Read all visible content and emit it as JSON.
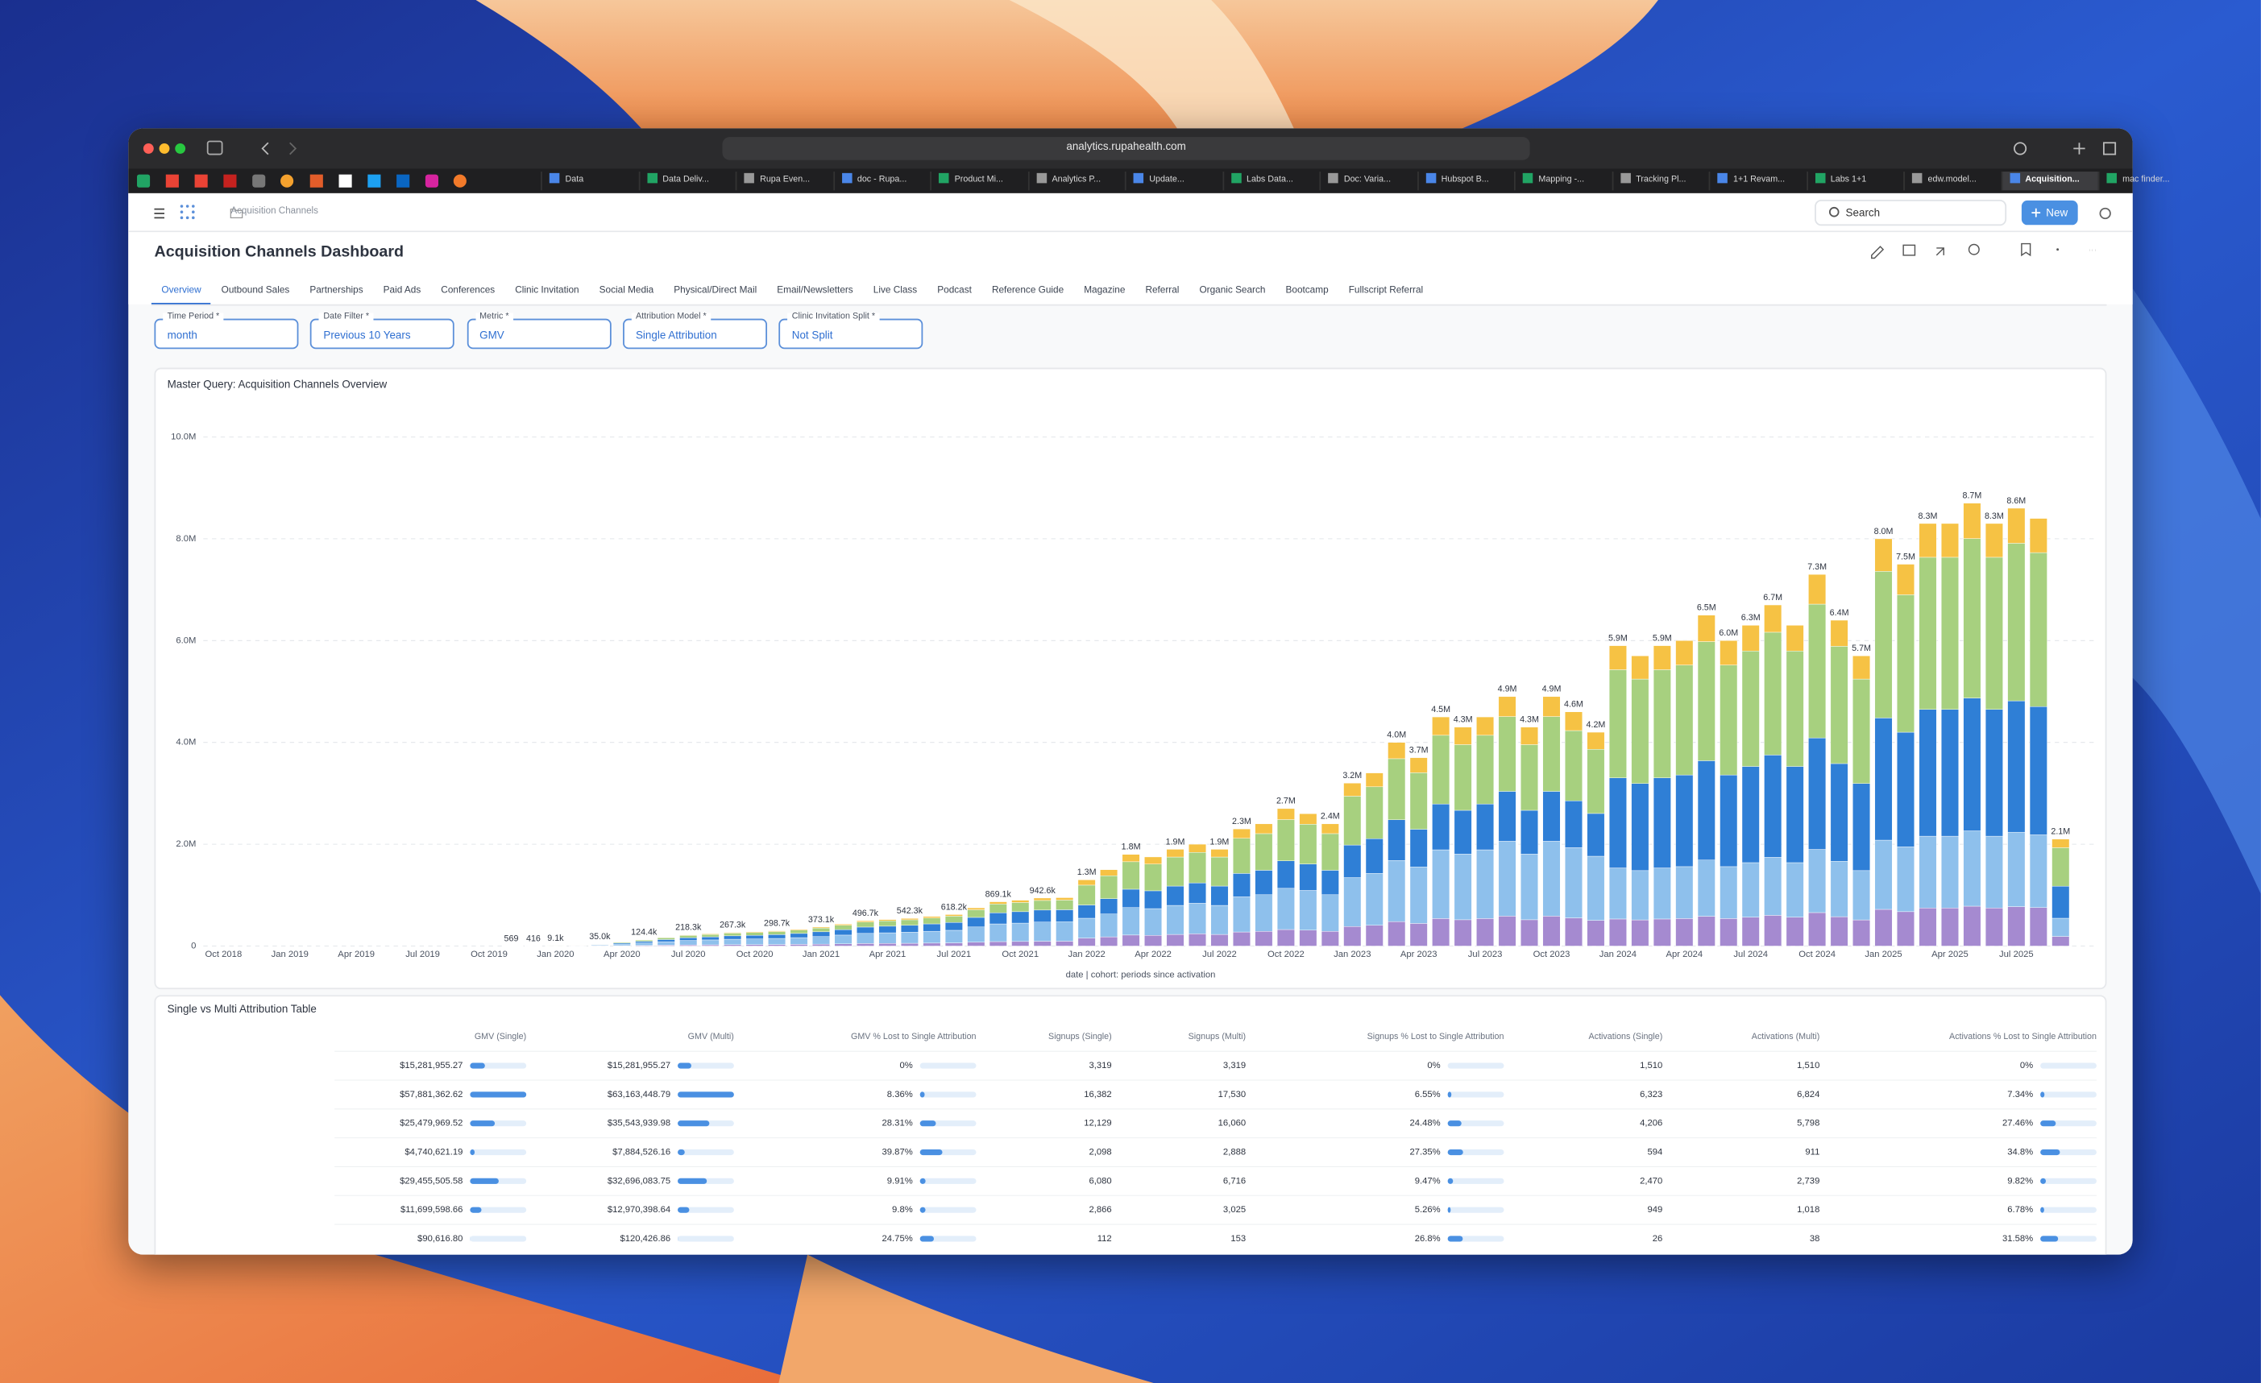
{
  "browser": {
    "url": "analytics.rupahealth.com",
    "tabs": [
      "Data",
      "Data Deliv...",
      "Rupa Even...",
      "doc - Rupa...",
      "Product Mi...",
      "Analytics P...",
      "Update...",
      "Labs Data...",
      "Doc: Varia...",
      "Hubspot B...",
      "Mapping -...",
      "Tracking Pl...",
      "1+1 Revam...",
      "Labs 1+1",
      "edw.model...",
      "Acquisition...",
      "mac finder..."
    ]
  },
  "app": {
    "breadcrumb": "Acquisition Channels",
    "search": "Search",
    "new_button": "New",
    "title": "Acquisition Channels Dashboard",
    "tabs": [
      "Overview",
      "Outbound Sales",
      "Partnerships",
      "Paid Ads",
      "Conferences",
      "Clinic Invitation",
      "Social Media",
      "Physical/Direct Mail",
      "Email/Newsletters",
      "Live Class",
      "Podcast",
      "Reference Guide",
      "Magazine",
      "Referral",
      "Organic Search",
      "Bootcamp",
      "Fullscript Referral"
    ],
    "filters": [
      {
        "label": "Time Period *",
        "value": "month"
      },
      {
        "label": "Date Filter *",
        "value": "Previous 10 Years"
      },
      {
        "label": "Metric *",
        "value": "GMV"
      },
      {
        "label": "Attribution Model *",
        "value": "Single Attribution"
      },
      {
        "label": "Clinic Invitation Split *",
        "value": "Not Split"
      }
    ]
  },
  "chart_data": {
    "type": "stacked_bar",
    "title": "Master Query: Acquisition Channels Overview",
    "x_label": "date | cohort: periods since activation",
    "categories": [
      "Oct 2018",
      null,
      null,
      "Jan 2019",
      null,
      null,
      "Apr 2019",
      null,
      null,
      "Jul 2019",
      null,
      null,
      "Oct 2019",
      null,
      null,
      "Jan 2020",
      null,
      null,
      "Apr 2020",
      null,
      null,
      "Jul 2020",
      null,
      null,
      "Oct 2020",
      null,
      null,
      "Jan 2021",
      null,
      null,
      "Apr 2021",
      null,
      null,
      "Jul 2021",
      null,
      null,
      "Oct 2021",
      null,
      null,
      "Jan 2022",
      null,
      null,
      "Apr 2022",
      null,
      null,
      "Jul 2022",
      null,
      null,
      "Oct 2022",
      null,
      null,
      "Jan 2023",
      null,
      null,
      "Apr 2023",
      null,
      null,
      "Jul 2023",
      null,
      null,
      "Oct 2023",
      null,
      null,
      "Jan 2024",
      null,
      null,
      "Apr 2024",
      null,
      null,
      "Jul 2024",
      null,
      null,
      "Oct 2024",
      null,
      null,
      "Jan 2025",
      null,
      null,
      "Apr 2025",
      null,
      null,
      "Jul 2025",
      null,
      null
    ],
    "ylim": [
      0,
      10000000
    ],
    "yticks": [
      0,
      {
        "value": 2000000,
        "label": "2.0M"
      },
      {
        "value": 4000000,
        "label": "4.0M"
      },
      {
        "value": 6000000,
        "label": "6.0M"
      },
      {
        "value": 8000000,
        "label": "8.0M"
      },
      {
        "value": 10000000,
        "label": "10.0M"
      }
    ],
    "grid": true,
    "series": [
      {
        "color": "#a58ad0",
        "values": [
          null,
          null,
          null,
          null,
          null,
          null,
          null,
          null,
          null,
          null,
          null,
          null,
          null,
          57,
          42,
          910,
          1500,
          3500,
          8000,
          12440,
          17000,
          21830,
          24000,
          26730,
          28000,
          29870,
          33000,
          37310,
          43000,
          49670,
          52000,
          54230,
          58000,
          61820,
          75000,
          86910,
          90000,
          94260,
          95000,
          156000,
          180000,
          216000,
          210000,
          228000,
          240000,
          228000,
          276000,
          288000,
          324000,
          312000,
          288000,
          384000,
          408000,
          480000,
          444000,
          540000,
          516000,
          540000,
          588000,
          516000,
          588000,
          552000,
          504000,
          531000,
          513000,
          531000,
          540000,
          585000,
          540000,
          567000,
          603000,
          567000,
          657000,
          576000,
          513000,
          720000,
          675000,
          747000,
          747000,
          783000,
          747000,
          774000,
          756000,
          189000
        ]
      },
      {
        "color": "#8ec0ec",
        "values": [
          null,
          null,
          null,
          null,
          null,
          null,
          null,
          null,
          null,
          null,
          null,
          null,
          null,
          228,
          166,
          3640,
          6000,
          14000,
          32000,
          49760,
          68000,
          87320,
          96000,
          106920,
          112000,
          119480,
          132000,
          149240,
          172000,
          198680,
          208000,
          216920,
          232000,
          247280,
          300000,
          347640,
          360000,
          377040,
          380000,
          390000,
          450000,
          540000,
          525000,
          570000,
          600000,
          570000,
          690000,
          720000,
          810000,
          780000,
          720000,
          960000,
          1020000,
          1200000,
          1110000,
          1350000,
          1290000,
          1350000,
          1470000,
          1290000,
          1470000,
          1380000,
          1260000,
          1003000,
          969000,
          1003000,
          1020000,
          1105000,
          1020000,
          1071000,
          1139000,
          1071000,
          1241000,
          1088000,
          969000,
          1360000,
          1275000,
          1411000,
          1411000,
          1479000,
          1411000,
          1462000,
          1428000,
          357000
        ]
      },
      {
        "color": "#2f7fd6",
        "values": [
          null,
          null,
          null,
          null,
          null,
          null,
          null,
          null,
          null,
          null,
          null,
          null,
          null,
          142,
          104,
          2275,
          3750,
          8750,
          20000,
          31100,
          42500,
          54575,
          60000,
          66825,
          70000,
          74675,
          82500,
          93275,
          107500,
          124175,
          130000,
          135575,
          145000,
          154550,
          187500,
          217275,
          225000,
          235650,
          237500,
          260000,
          300000,
          360000,
          350000,
          380000,
          400000,
          380000,
          460000,
          480000,
          540000,
          520000,
          480000,
          640000,
          680000,
          800000,
          740000,
          900000,
          860000,
          900000,
          980000,
          860000,
          980000,
          920000,
          840000,
          1770000,
          1710000,
          1770000,
          1800000,
          1950000,
          1800000,
          1890000,
          2010000,
          1890000,
          2190000,
          1920000,
          1710000,
          2400000,
          2250000,
          2490000,
          2490000,
          2610000,
          2490000,
          2580000,
          2520000,
          630000
        ]
      },
      {
        "color": "#a7d07f",
        "values": [
          null,
          null,
          null,
          null,
          null,
          null,
          null,
          null,
          null,
          null,
          null,
          null,
          null,
          114,
          83,
          1820,
          3000,
          7000,
          16000,
          24880,
          34000,
          43660,
          48000,
          53460,
          56000,
          59740,
          66000,
          74620,
          86000,
          99340,
          104000,
          108460,
          116000,
          123640,
          150000,
          173820,
          180000,
          188520,
          190000,
          390000,
          450000,
          540000,
          525000,
          570000,
          600000,
          570000,
          690000,
          720000,
          810000,
          780000,
          720000,
          960000,
          1020000,
          1200000,
          1110000,
          1350000,
          1290000,
          1350000,
          1470000,
          1290000,
          1470000,
          1380000,
          1260000,
          2124000,
          2052000,
          2124000,
          2160000,
          2340000,
          2160000,
          2268000,
          2412000,
          2268000,
          2628000,
          2304000,
          2052000,
          2880000,
          2700000,
          2988000,
          2988000,
          3132000,
          2988000,
          3096000,
          3024000,
          756000
        ]
      },
      {
        "color": "#f6c244",
        "values": [
          null,
          null,
          null,
          null,
          null,
          null,
          null,
          null,
          null,
          null,
          null,
          null,
          null,
          28,
          21,
          455,
          750,
          1750,
          4000,
          6220,
          8500,
          10915,
          12000,
          13365,
          14000,
          14935,
          16500,
          18655,
          21500,
          24835,
          26000,
          27115,
          29000,
          30910,
          37500,
          43455,
          45000,
          47130,
          47500,
          104000,
          120000,
          144000,
          140000,
          152000,
          160000,
          152000,
          184000,
          192000,
          216000,
          208000,
          192000,
          256000,
          272000,
          320000,
          296000,
          360000,
          344000,
          360000,
          392000,
          344000,
          392000,
          368000,
          336000,
          472000,
          456000,
          472000,
          480000,
          520000,
          480000,
          504000,
          536000,
          504000,
          584000,
          512000,
          456000,
          640000,
          600000,
          664000,
          664000,
          696000,
          664000,
          688000,
          672000,
          168000
        ]
      }
    ],
    "total_labels": [
      null,
      null,
      null,
      null,
      null,
      null,
      null,
      null,
      null,
      null,
      null,
      null,
      null,
      "569",
      "416",
      "9.1k",
      null,
      "35.0k",
      null,
      "124.4k",
      null,
      "218.3k",
      null,
      "267.3k",
      null,
      "298.7k",
      null,
      "373.1k",
      null,
      "496.7k",
      null,
      "542.3k",
      null,
      "618.2k",
      null,
      "869.1k",
      null,
      "942.6k",
      null,
      "1.3M",
      null,
      "1.8M",
      null,
      "1.9M",
      null,
      "1.9M",
      "2.3M",
      null,
      "2.7M",
      null,
      "2.4M",
      "3.2M",
      null,
      "4.0M",
      "3.7M",
      "4.5M",
      "4.3M",
      null,
      "4.9M",
      "4.3M",
      "4.9M",
      "4.6M",
      "4.2M",
      "5.9M",
      null,
      "5.9M",
      null,
      "6.5M",
      "6.0M",
      "6.3M",
      "6.7M",
      null,
      "7.3M",
      "6.4M",
      "5.7M",
      "8.0M",
      "7.5M",
      "8.3M",
      null,
      "8.7M",
      "8.3M",
      "8.6M",
      null,
      "2.1M"
    ]
  },
  "table": {
    "title": "Single vs Multi Attribution Table",
    "columns": [
      "GMV (Single)",
      "GMV (Multi)",
      "GMV % Lost to Single Attribution",
      "Signups (Single)",
      "Signups (Multi)",
      "Signups % Lost to Single Attribution",
      "Activations (Single)",
      "Activations (Multi)",
      "Activations % Lost to Single Attribution"
    ],
    "rows": [
      [
        {
          "value": 15281955.27,
          "label": "$15,281,955.27"
        },
        {
          "value": 15281955.27,
          "label": "$15,281,955.27"
        },
        {
          "value": 0,
          "label": "0%"
        },
        "3,319",
        "3,319",
        {
          "value": 0,
          "label": "0%"
        },
        "1,510",
        "1,510",
        {
          "value": 0,
          "label": "0%"
        }
      ],
      [
        {
          "value": 57881362.62,
          "label": "$57,881,362.62"
        },
        {
          "value": 63163448.79,
          "label": "$63,163,448.79"
        },
        {
          "value": 8.36,
          "label": "8.36%"
        },
        "16,382",
        "17,530",
        {
          "value": 6.55,
          "label": "6.55%"
        },
        "6,323",
        "6,824",
        {
          "value": 7.34,
          "label": "7.34%"
        }
      ],
      [
        {
          "value": 25479969.52,
          "label": "$25,479,969.52"
        },
        {
          "value": 35543939.98,
          "label": "$35,543,939.98"
        },
        {
          "value": 28.31,
          "label": "28.31%"
        },
        "12,129",
        "16,060",
        {
          "value": 24.48,
          "label": "24.48%"
        },
        "4,206",
        "5,798",
        {
          "value": 27.46,
          "label": "27.46%"
        }
      ],
      [
        {
          "value": 4740621.19,
          "label": "$4,740,621.19"
        },
        {
          "value": 7884526.16,
          "label": "$7,884,526.16"
        },
        {
          "value": 39.87,
          "label": "39.87%"
        },
        "2,098",
        "2,888",
        {
          "value": 27.35,
          "label": "27.35%"
        },
        "594",
        "911",
        {
          "value": 34.8,
          "label": "34.8%"
        }
      ],
      [
        {
          "value": 29455505.58,
          "label": "$29,455,505.58"
        },
        {
          "value": 32696083.75,
          "label": "$32,696,083.75"
        },
        {
          "value": 9.91,
          "label": "9.91%"
        },
        "6,080",
        "6,716",
        {
          "value": 9.47,
          "label": "9.47%"
        },
        "2,470",
        "2,739",
        {
          "value": 9.82,
          "label": "9.82%"
        }
      ],
      [
        {
          "value": 11699598.66,
          "label": "$11,699,598.66"
        },
        {
          "value": 12970398.64,
          "label": "$12,970,398.64"
        },
        {
          "value": 9.8,
          "label": "9.8%"
        },
        "2,866",
        "3,025",
        {
          "value": 5.26,
          "label": "5.26%"
        },
        "949",
        "1,018",
        {
          "value": 6.78,
          "label": "6.78%"
        }
      ],
      [
        {
          "value": 90616.8,
          "label": "$90,616.80"
        },
        {
          "value": 120426.86,
          "label": "$120,426.86"
        },
        {
          "value": 24.75,
          "label": "24.75%"
        },
        "112",
        "153",
        {
          "value": 26.8,
          "label": "26.8%"
        },
        "26",
        "38",
        {
          "value": 31.58,
          "label": "31.58%"
        }
      ]
    ]
  }
}
